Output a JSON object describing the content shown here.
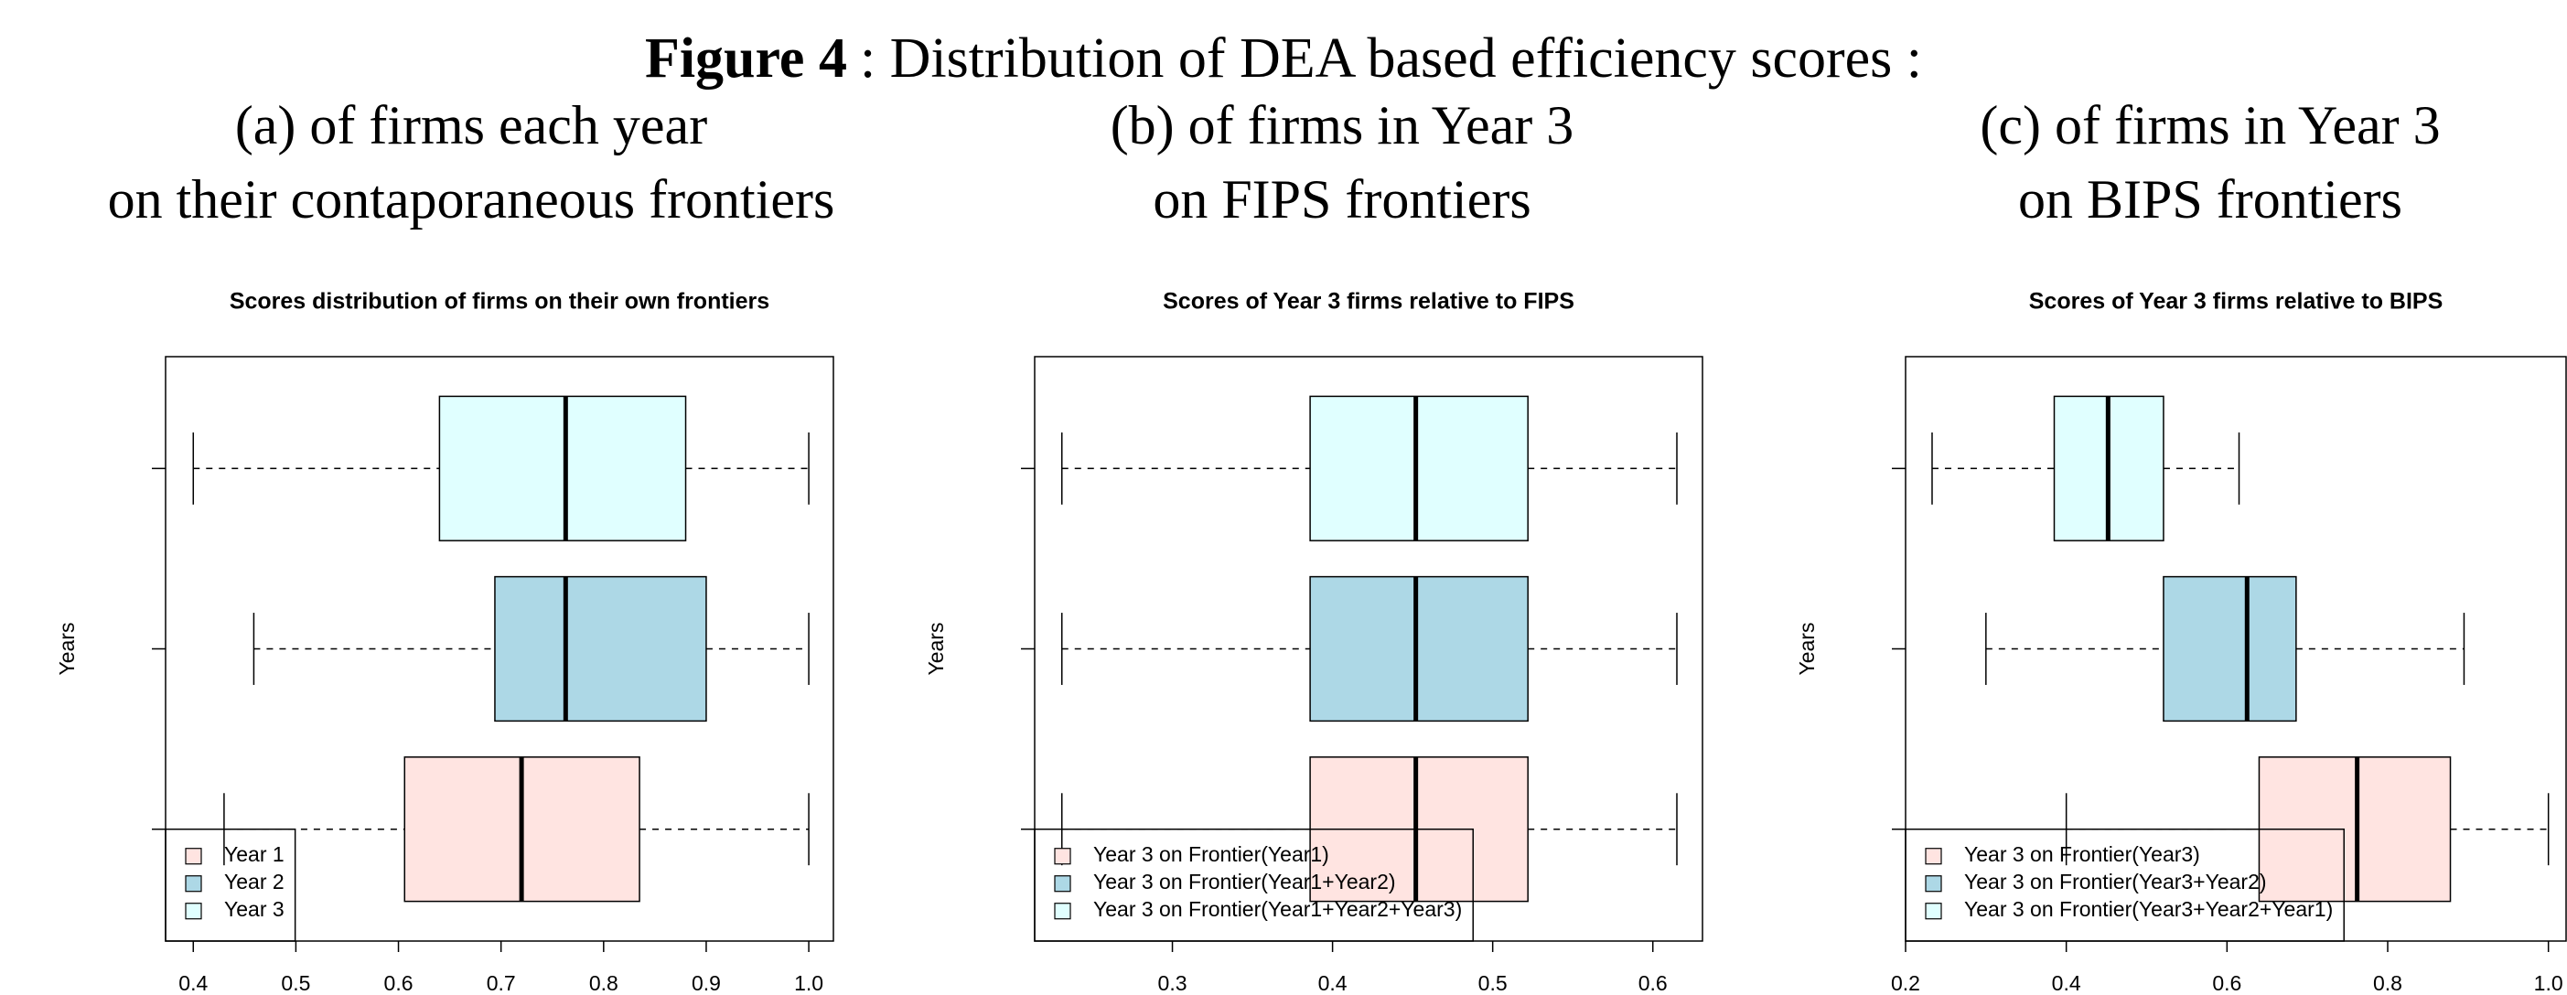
{
  "figure_title": {
    "label": "Figure 4",
    "text": ": Distribution of DEA based efficiency scores :"
  },
  "chart_data": [
    {
      "type": "boxplot",
      "orientation": "horizontal",
      "heading": [
        "(a) of firms each year",
        "on their contaporaneous frontiers"
      ],
      "title": "Scores distribution of firms on their own frontiers",
      "ylabel": "Years",
      "legend": "bottomleft",
      "xlim": [
        0.373,
        1.024
      ],
      "xticks": [
        0.4,
        0.5,
        0.6,
        0.7,
        0.8,
        0.9,
        {
          "value": 1.0,
          "label": "1.0"
        }
      ],
      "series": [
        {
          "name": "Year 1",
          "color": "#ffe4e1",
          "min": 0.43,
          "q1": 0.606,
          "median": 0.72,
          "q3": 0.835,
          "max": 1.0
        },
        {
          "name": "Year 2",
          "color": "#add8e6",
          "min": 0.459,
          "q1": 0.694,
          "median": 0.763,
          "q3": 0.9,
          "max": 1.0
        },
        {
          "name": "Year 3",
          "color": "#e0ffff",
          "min": 0.4,
          "q1": 0.64,
          "median": 0.763,
          "q3": 0.88,
          "max": 1.0
        }
      ]
    },
    {
      "type": "boxplot",
      "orientation": "horizontal",
      "heading": [
        "(b) of firms in Year 3",
        "on FIPS frontiers"
      ],
      "title": "Scores of Year 3 firms relative to FIPS",
      "ylabel": "Years",
      "legend": "bottomleft",
      "xlim": [
        0.214,
        0.631
      ],
      "xticks": [
        0.3,
        0.4,
        0.5,
        0.6
      ],
      "series": [
        {
          "name": "Year 3 on Frontier(Year1)",
          "color": "#ffe4e1",
          "min": 0.231,
          "q1": 0.386,
          "median": 0.452,
          "q3": 0.522,
          "max": 0.615
        },
        {
          "name": "Year 3 on Frontier(Year1+Year2)",
          "color": "#add8e6",
          "min": 0.231,
          "q1": 0.386,
          "median": 0.452,
          "q3": 0.522,
          "max": 0.615
        },
        {
          "name": "Year 3 on Frontier(Year1+Year2+Year3)",
          "color": "#e0ffff",
          "min": 0.231,
          "q1": 0.386,
          "median": 0.452,
          "q3": 0.522,
          "max": 0.615
        }
      ]
    },
    {
      "type": "boxplot",
      "orientation": "horizontal",
      "heading": [
        "(c) of firms in Year 3",
        "on BIPS frontiers"
      ],
      "title": "Scores of Year 3 firms relative to BIPS",
      "ylabel": "Years",
      "legend": "bottomleft",
      "xlim": [
        0.2,
        1.022
      ],
      "xticks": [
        0.2,
        0.4,
        0.6,
        0.8,
        {
          "value": 1.0,
          "label": "1.0"
        }
      ],
      "series": [
        {
          "name": "Year 3 on Frontier(Year3)",
          "color": "#ffe4e1",
          "min": 0.4,
          "q1": 0.64,
          "median": 0.762,
          "q3": 0.878,
          "max": 1.0
        },
        {
          "name": "Year 3 on Frontier(Year3+Year2)",
          "color": "#add8e6",
          "min": 0.3,
          "q1": 0.521,
          "median": 0.625,
          "q3": 0.686,
          "max": 0.895
        },
        {
          "name": "Year 3 on Frontier(Year3+Year2+Year1)",
          "color": "#e0ffff",
          "min": 0.233,
          "q1": 0.385,
          "median": 0.452,
          "q3": 0.521,
          "max": 0.615
        }
      ]
    }
  ]
}
